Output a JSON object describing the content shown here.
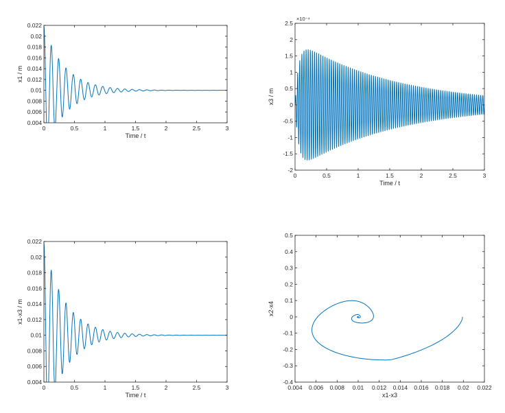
{
  "colors": {
    "series": "#0072bd",
    "axes": "#262626",
    "background": "#ffffff"
  },
  "chart_data": [
    {
      "id": "x1",
      "type": "line",
      "title": "",
      "xlabel": "Time / t",
      "ylabel": "x1 / m",
      "xlim": [
        0,
        3
      ],
      "ylim": [
        0.004,
        0.022
      ],
      "xticks": [
        0,
        0.5,
        1,
        1.5,
        2,
        2.5,
        3
      ],
      "xtick_labels": [
        "0",
        "0.5",
        "1",
        "1.5",
        "2",
        "2.5",
        "3"
      ],
      "yticks": [
        0.004,
        0.006,
        0.008,
        0.01,
        0.012,
        0.014,
        0.016,
        0.018,
        0.02,
        0.022
      ],
      "ytick_labels": [
        "0.004",
        "0.006",
        "0.008",
        "0.01",
        "0.012",
        "0.014",
        "0.016",
        "0.018",
        "0.02",
        "0.022"
      ],
      "signal": {
        "kind": "damped",
        "offset": 0.01,
        "amplitude": 0.0118,
        "decay": 2.9,
        "frequency": 8.3,
        "phase": 1.55
      },
      "series": [
        {
          "name": "x1",
          "description": "damped oscillation from 0.022 settling to 0.01"
        }
      ]
    },
    {
      "id": "x3",
      "type": "line",
      "title": "",
      "xlabel": "Time / t",
      "ylabel": "x3 / m",
      "exponent_label": "×10⁻⁴",
      "xlim": [
        0,
        3
      ],
      "ylim": [
        -2,
        2.5
      ],
      "xticks": [
        0,
        0.5,
        1,
        1.5,
        2,
        2.5,
        3
      ],
      "xtick_labels": [
        "0",
        "0.5",
        "1",
        "1.5",
        "2",
        "2.5",
        "3"
      ],
      "yticks": [
        -2,
        -1.5,
        -1,
        -0.5,
        0,
        0.5,
        1,
        1.5,
        2,
        2.5
      ],
      "ytick_labels": [
        "-2",
        "-1.5",
        "-1",
        "-0.5",
        "0",
        "0.5",
        "1",
        "1.5",
        "2",
        "2.5"
      ],
      "signal": {
        "kind": "beat",
        "amplitude": 2.0,
        "decay": 0.65,
        "frequency": 30,
        "rise": 0.06
      },
      "series": [
        {
          "name": "x3",
          "description": "fast oscillation with envelope decaying from 2e-4 to about 0.3e-4"
        }
      ]
    },
    {
      "id": "x1-x3",
      "type": "line",
      "title": "",
      "xlabel": "Time / t",
      "ylabel": "x1-x3 / m",
      "xlim": [
        0,
        3
      ],
      "ylim": [
        0.004,
        0.022
      ],
      "xticks": [
        0,
        0.5,
        1,
        1.5,
        2,
        2.5,
        3
      ],
      "xtick_labels": [
        "0",
        "0.5",
        "1",
        "1.5",
        "2",
        "2.5",
        "3"
      ],
      "yticks": [
        0.004,
        0.006,
        0.008,
        0.01,
        0.012,
        0.014,
        0.016,
        0.018,
        0.02,
        0.022
      ],
      "ytick_labels": [
        "0.004",
        "0.006",
        "0.008",
        "0.01",
        "0.012",
        "0.014",
        "0.016",
        "0.018",
        "0.02",
        "0.022"
      ],
      "signal": {
        "kind": "damped",
        "offset": 0.01,
        "amplitude": 0.0118,
        "decay": 2.9,
        "frequency": 8.3,
        "phase": 1.55
      },
      "series": [
        {
          "name": "x1-x3",
          "description": "damped oscillation from 0.022 settling to 0.01"
        }
      ]
    },
    {
      "id": "phase",
      "type": "line",
      "title": "",
      "xlabel": "x1-x3",
      "ylabel": "x2-x4",
      "xlim": [
        0.004,
        0.022
      ],
      "ylim": [
        -0.4,
        0.5
      ],
      "xticks": [
        0.004,
        0.006,
        0.008,
        0.01,
        0.012,
        0.014,
        0.016,
        0.018,
        0.02,
        0.022
      ],
      "xtick_labels": [
        "0.004",
        "0.006",
        "0.008",
        "0.01",
        "0.012",
        "0.014",
        "0.016",
        "0.018",
        "0.02",
        "0.022"
      ],
      "yticks": [
        -0.4,
        -0.3,
        -0.2,
        -0.1,
        0,
        0.1,
        0.2,
        0.3,
        0.4,
        0.5
      ],
      "ytick_labels": [
        "-0.4",
        "-0.3",
        "-0.2",
        "-0.1",
        "0",
        "0.1",
        "0.2",
        "0.3",
        "0.4",
        "0.5"
      ],
      "signal": {
        "kind": "spiral",
        "center_x": 0.01,
        "center_y": 0,
        "start_x": 0.0199,
        "start_y": 0,
        "radius_x": 0.0102,
        "radius_y": 0.41,
        "skew_x": 0.0012,
        "decay": 0.31,
        "turns": 14
      },
      "series": [
        {
          "name": "phase-trajectory",
          "description": "clockwise spiral converging to (0.01, 0)"
        }
      ]
    }
  ]
}
